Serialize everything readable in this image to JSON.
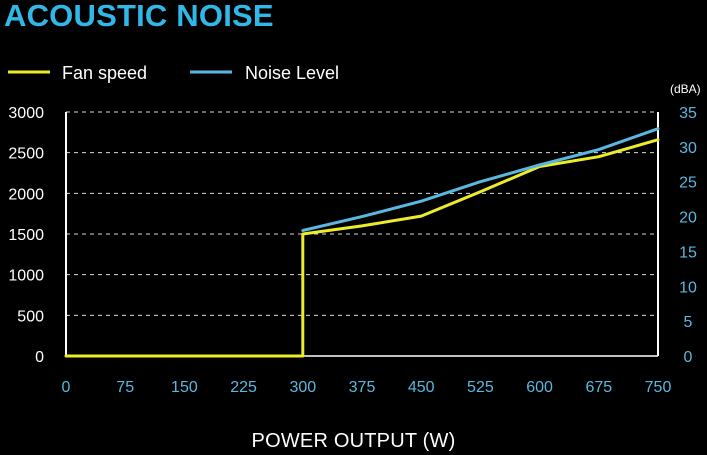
{
  "chart_data": {
    "type": "line",
    "title": "ACOUSTIC NOISE",
    "xlabel": "POWER OUTPUT (W)",
    "y2unit": "(dBA)",
    "x_ticks": [
      0,
      75,
      150,
      225,
      300,
      375,
      450,
      525,
      600,
      675,
      750
    ],
    "y_ticks": [
      0,
      500,
      1000,
      1500,
      2000,
      2500,
      3000
    ],
    "y2_ticks": [
      0,
      5,
      10,
      15,
      20,
      25,
      30,
      35
    ],
    "xlim": [
      0,
      750
    ],
    "ylim": [
      0,
      3000
    ],
    "y2lim": [
      0,
      35
    ],
    "grid": true,
    "legend_position": "top-left",
    "series": [
      {
        "name": "Fan speed",
        "axis": "left",
        "color": "#ecec2a",
        "points": [
          [
            0,
            0
          ],
          [
            300,
            0
          ],
          [
            300,
            1500
          ],
          [
            375,
            1600
          ],
          [
            450,
            1720
          ],
          [
            525,
            2020
          ],
          [
            600,
            2330
          ],
          [
            675,
            2450
          ],
          [
            750,
            2660
          ]
        ]
      },
      {
        "name": "Noise Level",
        "axis": "right",
        "color": "#5ab8e0",
        "points": [
          [
            300,
            18.0
          ],
          [
            375,
            20.0
          ],
          [
            450,
            22.2
          ],
          [
            525,
            25.0
          ],
          [
            600,
            27.4
          ],
          [
            675,
            29.6
          ],
          [
            750,
            32.6
          ]
        ]
      }
    ],
    "colors": {
      "left_axis_text": "#ffffff",
      "right_axis_text": "#5ab8e0",
      "x_axis_text": "#5ab8e0",
      "title": "#30b8e8",
      "grid": "#ffffff"
    }
  }
}
